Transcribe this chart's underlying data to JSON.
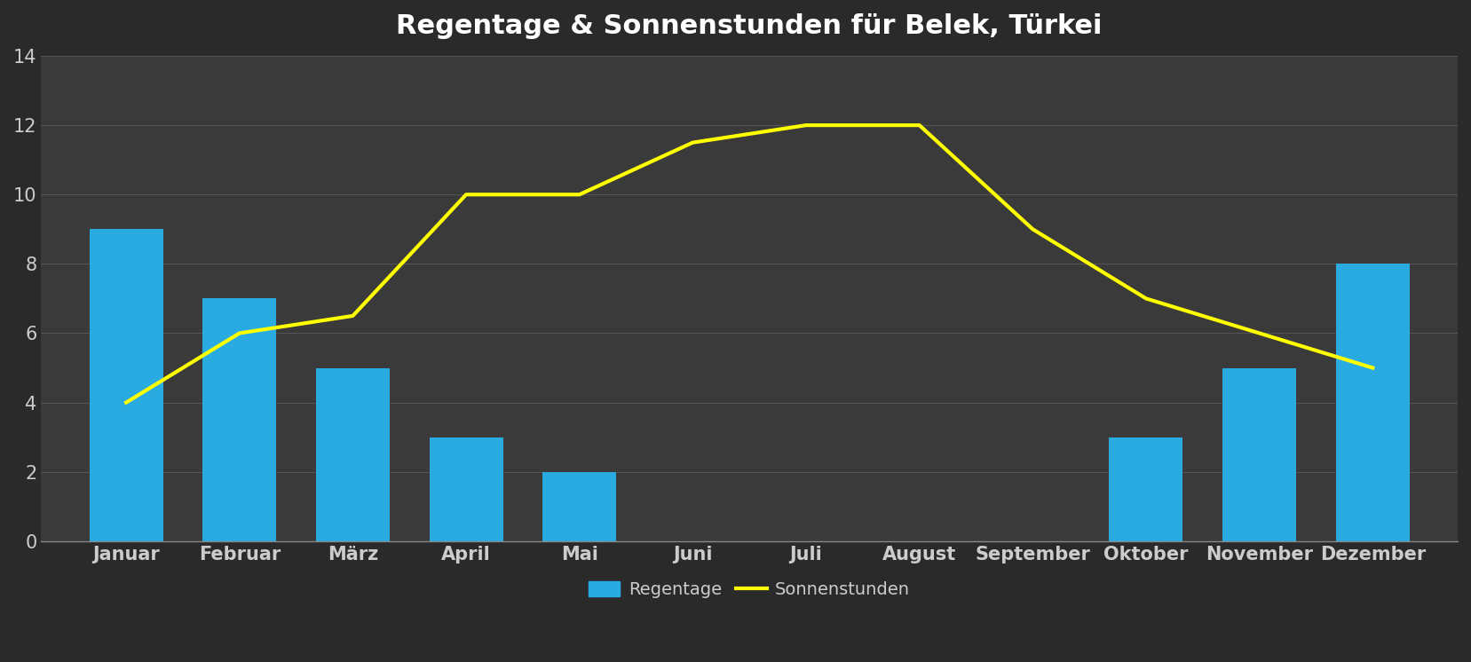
{
  "title": "Regentage & Sonnenstunden für Belek, Türkei",
  "months": [
    "Januar",
    "Februar",
    "März",
    "April",
    "Mai",
    "Juni",
    "Juli",
    "August",
    "September",
    "Oktober",
    "November",
    "Dezember"
  ],
  "regentage": [
    9,
    7,
    5,
    3,
    2,
    0,
    0,
    0,
    0,
    3,
    5,
    8
  ],
  "sonnenstunden": [
    4,
    6,
    6.5,
    10,
    10,
    11.5,
    12,
    12,
    9,
    7,
    6,
    5
  ],
  "bar_color": "#29ABE2",
  "line_color": "#FFFF00",
  "background_dark": "#2a2a2a",
  "background_mid": "#444444",
  "title_color": "#FFFFFF",
  "tick_color": "#CCCCCC",
  "grid_color": "#555555",
  "ylim": [
    0,
    14
  ],
  "yticks": [
    0,
    2,
    4,
    6,
    8,
    10,
    12,
    14
  ],
  "title_fontsize": 22,
  "tick_fontsize": 15,
  "legend_fontsize": 14,
  "line_width": 3.0,
  "bar_width": 0.65
}
